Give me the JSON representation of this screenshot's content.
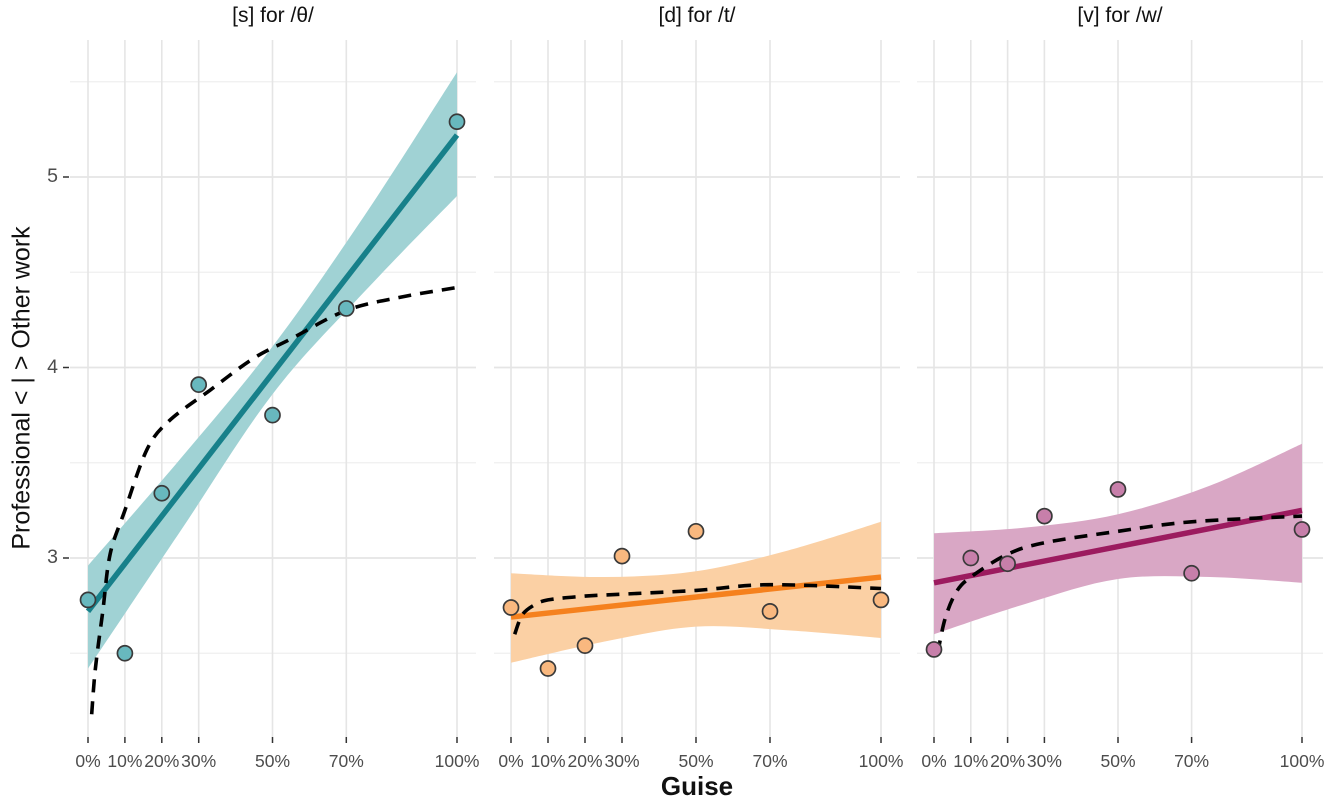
{
  "figure": {
    "y_axis_label": "Professional  < | >  Other work",
    "x_axis_label": "Guise",
    "y_tick_labels": [
      "5",
      "4",
      "3"
    ],
    "y_tick_values": [
      5,
      4,
      3
    ],
    "x_tick_labels": [
      "0%",
      "10%",
      "20%",
      "30%",
      "50%",
      "70%",
      "100%"
    ],
    "x_tick_pcts": [
      0,
      10,
      20,
      30,
      50,
      70,
      100
    ],
    "colors": {
      "grid_major": "#e5e5e5",
      "grid_minor": "#efefef",
      "axis_tick": "#333333",
      "tick_text": "#4d4d4d",
      "dashed_line": "#000000",
      "point_stroke": "#3a3a3a"
    }
  },
  "chart_data": {
    "type": "scatter",
    "title": "",
    "xlabel": "Guise",
    "ylabel": "Professional  < | >  Other work",
    "x_ticks_pct": [
      0,
      10,
      20,
      30,
      50,
      70,
      100
    ],
    "y_major": [
      3,
      4,
      5
    ],
    "y_minor": [
      2.5,
      3.5,
      4.5,
      5.5
    ],
    "ylim": [
      2.06,
      5.72
    ],
    "xlim_pct": [
      -5,
      105
    ],
    "grid": true,
    "legend": "none",
    "panels": [
      {
        "title": "[s] for /θ/",
        "color_line": "#17808A",
        "color_ribbon": "#A0D2D4",
        "color_marker": "#68B8BE",
        "points": [
          [
            0,
            2.78
          ],
          [
            10,
            2.5
          ],
          [
            20,
            3.34
          ],
          [
            30,
            3.91
          ],
          [
            50,
            3.75
          ],
          [
            70,
            4.31
          ],
          [
            100,
            5.29
          ]
        ],
        "linear_fit": [
          [
            0,
            2.72
          ],
          [
            100,
            5.22
          ]
        ],
        "ribbon_pcts": [
          0,
          25,
          50,
          75,
          100
        ],
        "ribbon_top": [
          2.96,
          3.52,
          4.11,
          4.8,
          5.55
        ],
        "ribbon_bottom": [
          2.42,
          3.14,
          3.86,
          4.4,
          4.9
        ],
        "dashed_curve": [
          [
            1,
            2.18
          ],
          [
            2,
            2.42
          ],
          [
            4,
            2.72
          ],
          [
            6,
            3.02
          ],
          [
            10,
            3.25
          ],
          [
            16,
            3.57
          ],
          [
            22,
            3.72
          ],
          [
            33,
            3.88
          ],
          [
            45,
            4.05
          ],
          [
            55,
            4.15
          ],
          [
            70,
            4.3
          ],
          [
            85,
            4.37
          ],
          [
            100,
            4.42
          ]
        ]
      },
      {
        "title": "[d] for /t/",
        "color_line": "#F5811E",
        "color_ribbon": "#FBD0A4",
        "color_marker": "#F9B87F",
        "points": [
          [
            0,
            2.74
          ],
          [
            10,
            2.42
          ],
          [
            20,
            2.54
          ],
          [
            30,
            3.01
          ],
          [
            50,
            3.14
          ],
          [
            70,
            2.72
          ],
          [
            100,
            2.78
          ]
        ],
        "linear_fit": [
          [
            0,
            2.69
          ],
          [
            100,
            2.9
          ]
        ],
        "ribbon_pcts": [
          0,
          25,
          50,
          75,
          100
        ],
        "ribbon_top": [
          2.92,
          2.9,
          2.93,
          3.04,
          3.19
        ],
        "ribbon_bottom": [
          2.45,
          2.56,
          2.64,
          2.62,
          2.58
        ],
        "dashed_curve": [
          [
            1,
            2.6
          ],
          [
            3,
            2.7
          ],
          [
            6,
            2.75
          ],
          [
            10,
            2.78
          ],
          [
            20,
            2.8
          ],
          [
            30,
            2.81
          ],
          [
            50,
            2.83
          ],
          [
            70,
            2.86
          ],
          [
            100,
            2.84
          ]
        ]
      },
      {
        "title": "[v] for /w/",
        "color_line": "#9C1B5F",
        "color_ribbon": "#D9A7C5",
        "color_marker": "#C77FAA",
        "points": [
          [
            0,
            2.52
          ],
          [
            10,
            3.0
          ],
          [
            20,
            2.97
          ],
          [
            30,
            3.22
          ],
          [
            50,
            3.36
          ],
          [
            70,
            2.92
          ],
          [
            100,
            3.15
          ]
        ],
        "linear_fit": [
          [
            0,
            2.87
          ],
          [
            100,
            3.25
          ]
        ],
        "ribbon_pcts": [
          0,
          25,
          50,
          75,
          100
        ],
        "ribbon_top": [
          3.13,
          3.16,
          3.23,
          3.38,
          3.6
        ],
        "ribbon_bottom": [
          2.6,
          2.76,
          2.89,
          2.9,
          2.87
        ],
        "dashed_curve": [
          [
            1,
            2.5
          ],
          [
            3,
            2.68
          ],
          [
            6,
            2.82
          ],
          [
            10,
            2.9
          ],
          [
            20,
            3.02
          ],
          [
            30,
            3.08
          ],
          [
            50,
            3.14
          ],
          [
            70,
            3.19
          ],
          [
            100,
            3.22
          ]
        ]
      }
    ]
  }
}
